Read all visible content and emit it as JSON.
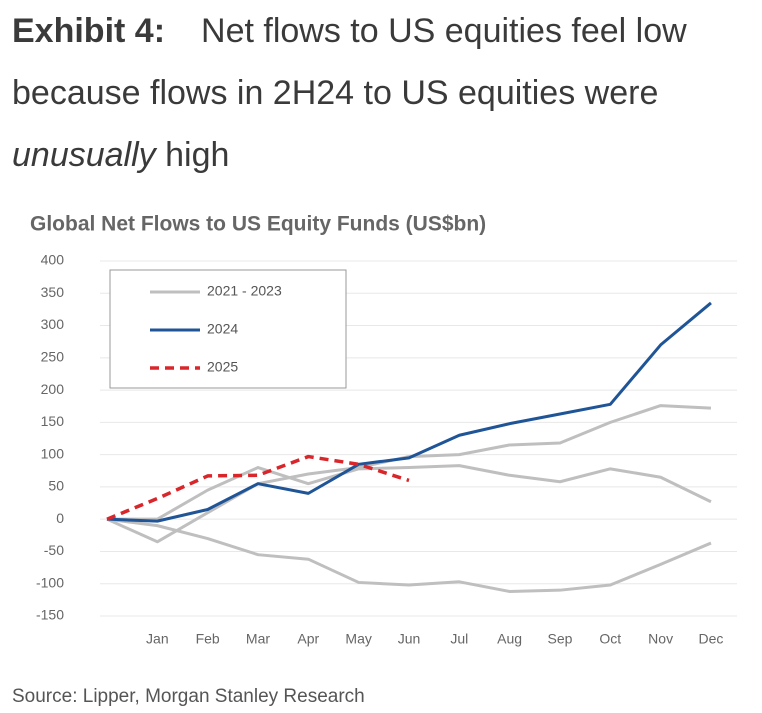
{
  "header": {
    "label": "Exhibit 4:",
    "title_parts": [
      "Net flows to US equities feel low because flows in 2H24 to US equities were ",
      "unusually",
      " high"
    ]
  },
  "chart_data": {
    "type": "line",
    "title": "Global Net Flows to US Equity Funds (US$bn)",
    "categories": [
      null,
      "Jan",
      "Feb",
      "Mar",
      "Apr",
      "May",
      "Jun",
      "Jul",
      "Aug",
      "Sep",
      "Oct",
      "Nov",
      "Dec"
    ],
    "series": [
      {
        "name": "2021 - 2023",
        "color": "#bfbfbf",
        "dash": false,
        "values": [
          [
            0,
            -10,
            -30,
            -55,
            -62,
            -98,
            -102,
            -97,
            -112,
            -110,
            -102,
            -70,
            -37
          ],
          [
            0,
            -35,
            10,
            55,
            70,
            80,
            97,
            100,
            115,
            118,
            150,
            176,
            172
          ],
          [
            0,
            0,
            45,
            80,
            55,
            78,
            80,
            83,
            68,
            58,
            78,
            65,
            27
          ]
        ]
      },
      {
        "name": "2024",
        "color": "#1f5597",
        "dash": false,
        "values": [
          0,
          -3,
          15,
          55,
          40,
          85,
          95,
          130,
          148,
          163,
          178,
          270,
          335
        ]
      },
      {
        "name": "2025",
        "color": "#d9262b",
        "dash": true,
        "values": [
          0,
          32,
          67,
          68,
          97,
          85,
          60,
          null,
          null,
          null,
          null,
          null,
          null
        ]
      }
    ],
    "ylim": [
      -150,
      400
    ],
    "yticks": [
      -150,
      -100,
      -50,
      0,
      50,
      100,
      150,
      200,
      250,
      300,
      350,
      400
    ],
    "grid": true,
    "legend": "upper left"
  },
  "source": "Source: Lipper, Morgan Stanley Research"
}
